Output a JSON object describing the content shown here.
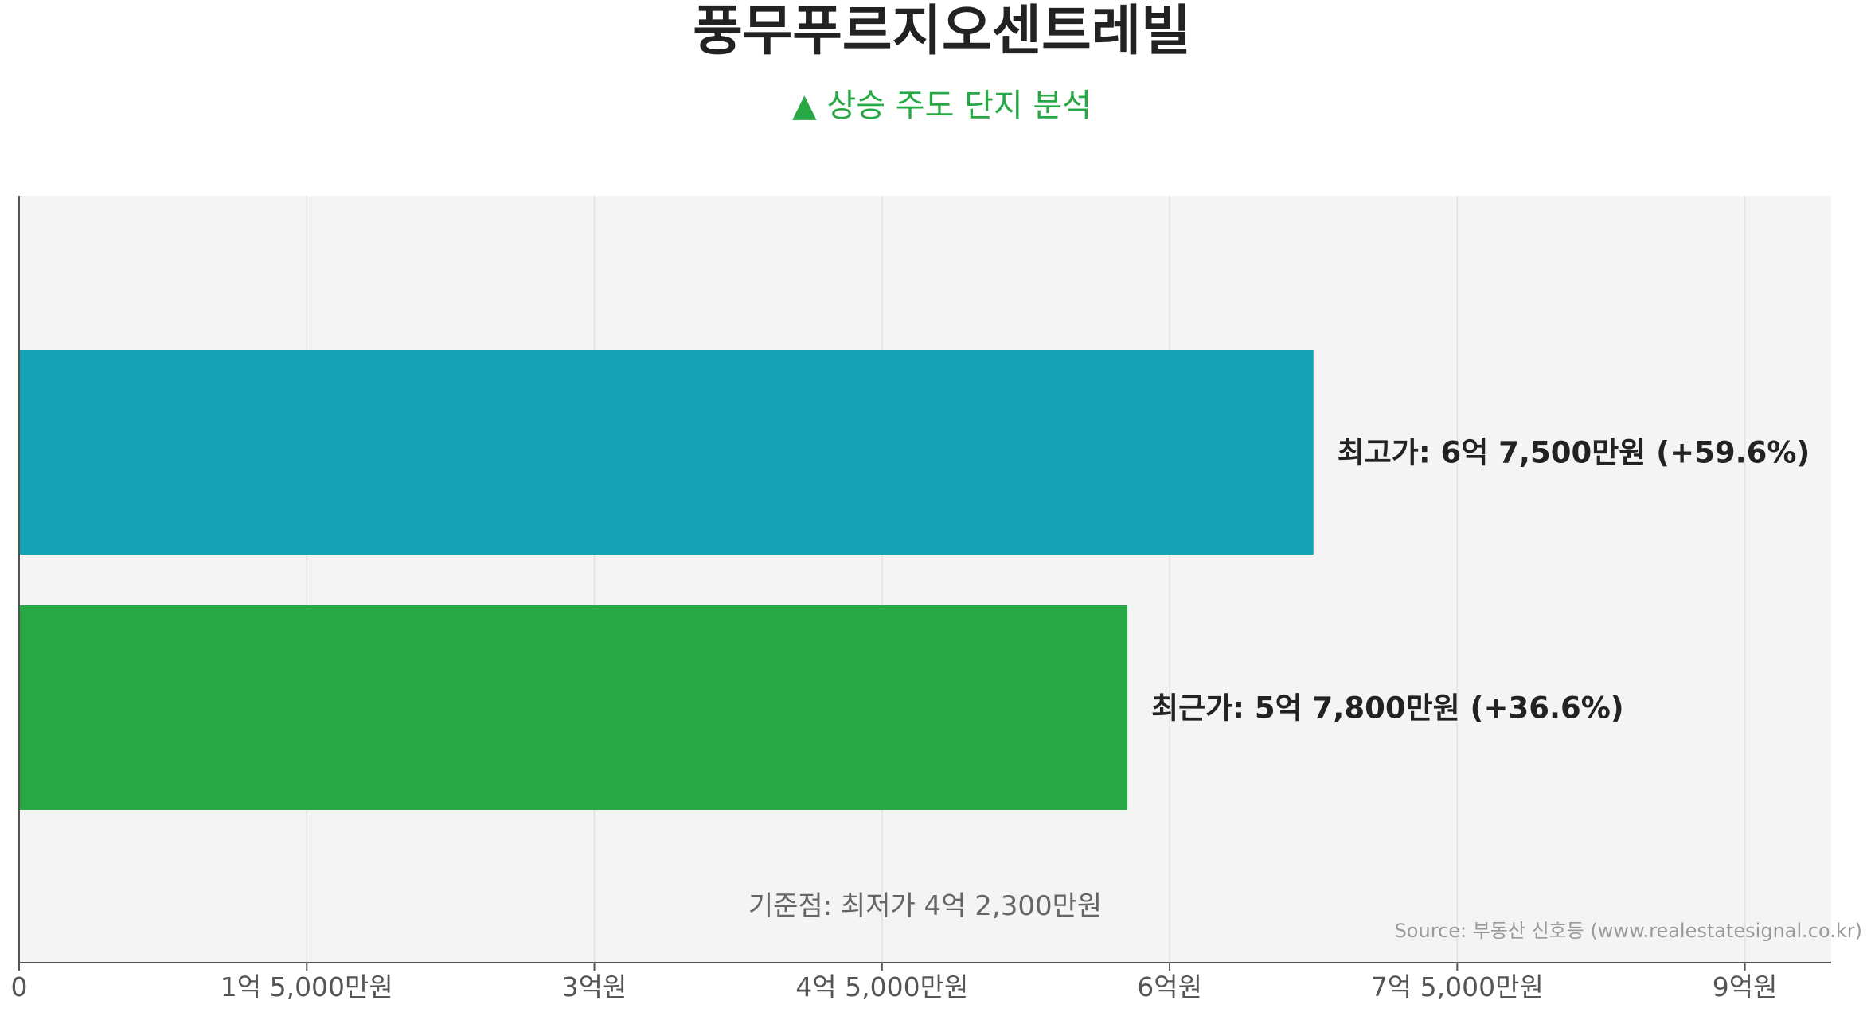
{
  "chart_data": {
    "type": "bar",
    "orientation": "horizontal",
    "title": "풍무푸르지오센트레빌",
    "subtitle": "▲ 상승 주도 단지 분석",
    "categories": [
      "최고가",
      "최근가"
    ],
    "values": [
      675000000,
      578000000
    ],
    "bar_labels": [
      "최고가: 6억 7,500만원 (+59.6%)",
      "최근가: 5억 7,800만원 (+36.6%)"
    ],
    "colors": [
      "#18a2b8",
      "#28a745"
    ],
    "xlim": [
      0,
      945000000
    ],
    "x_ticks": [
      0,
      150000000,
      300000000,
      450000000,
      600000000,
      750000000,
      900000000
    ],
    "x_tick_labels": [
      "0",
      "1억 5,000만원",
      "3억원",
      "4억 5,000만원",
      "6억원",
      "7억 5,000만원",
      "9억원"
    ],
    "baseline_note": "기준점: 최저가 4억 2,300만원",
    "source": "Source: 부동산 신호등 (www.realestatesignal.co.kr)",
    "grid": true,
    "plot_background": "#f4f4f4",
    "grid_color": "#e2e2e2",
    "axis_color": "#555555"
  }
}
